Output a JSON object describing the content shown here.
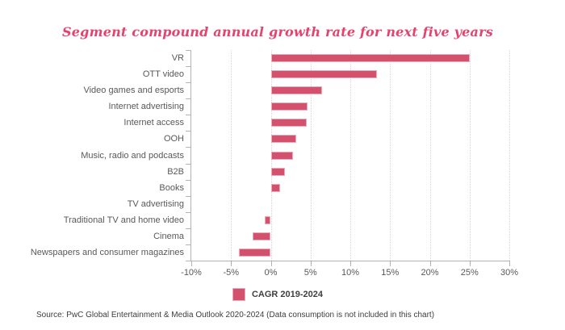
{
  "title": "Segment compound annual growth rate for next five years",
  "legend": {
    "label": "CAGR 2019-2024"
  },
  "source": "Source: PwC Global Entertainment & Media Outlook 2020-2024 (Data consumption is not included in this chart)",
  "colors": {
    "bar": "#d4516d",
    "bar_border": "#e9aab9",
    "title": "#e5436e",
    "axis": "#b3b3b3",
    "grid": "#d8d8d8",
    "text": "#595959",
    "legend_text": "#3f3f3f",
    "source_text": "#3d3d3d"
  },
  "chart_data": {
    "type": "bar",
    "orientation": "horizontal",
    "title": "Segment compound annual growth rate for next five years",
    "series_name": "CAGR 2019-2024",
    "categories": [
      "VR",
      "OTT video",
      "Video games and esports",
      "Internet advertising",
      "Internet access",
      "OOH",
      "Music, radio and podcasts",
      "B2B",
      "Books",
      "TV advertising",
      "Traditional TV and home video",
      "Cinema",
      "Newspapers and consumer magazines"
    ],
    "values": [
      25.0,
      13.4,
      6.4,
      4.6,
      4.5,
      3.2,
      2.8,
      1.8,
      1.2,
      0.0,
      -0.8,
      -2.3,
      -4.0
    ],
    "value_unit": "%",
    "xlim": [
      -10,
      30
    ],
    "x_tick_values": [
      -10,
      -5,
      0,
      5,
      10,
      15,
      20,
      25,
      30
    ],
    "x_tick_labels": [
      "-10%",
      "-5%",
      "0%",
      "5%",
      "10%",
      "15%",
      "20%",
      "25%",
      "30%"
    ],
    "grid": "vertical-dotted",
    "legend_position": "bottom"
  }
}
